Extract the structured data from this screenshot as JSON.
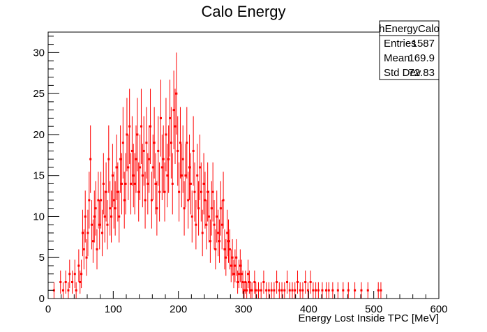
{
  "chart_data": {
    "type": "histogram",
    "title": "Calo Energy",
    "xlabel": "Energy Lost Inside TPC [MeV]",
    "ylabel": "",
    "xlim": [
      0,
      600
    ],
    "ylim": [
      0,
      32.5
    ],
    "bin_width": 2,
    "x_ticks": [
      0,
      100,
      200,
      300,
      400,
      500,
      600
    ],
    "y_ticks": [
      0,
      5,
      10,
      15,
      20,
      25,
      30
    ],
    "grid": false,
    "marker_color": "#ff0000",
    "stats_box": {
      "name": "hEnergyCalo",
      "rows": [
        {
          "label": "Entries",
          "value": "1587"
        },
        {
          "label": "Mean",
          "value": "169.9"
        },
        {
          "label": "Std Dev",
          "value": "72.83"
        }
      ]
    },
    "bins": [
      {
        "x": 9,
        "y": 1
      },
      {
        "x": 13,
        "y": 0
      },
      {
        "x": 19,
        "y": 2
      },
      {
        "x": 23,
        "y": 1
      },
      {
        "x": 27,
        "y": 2
      },
      {
        "x": 31,
        "y": 1
      },
      {
        "x": 33,
        "y": 3
      },
      {
        "x": 37,
        "y": 2
      },
      {
        "x": 41,
        "y": 3
      },
      {
        "x": 43,
        "y": 1
      },
      {
        "x": 47,
        "y": 4
      },
      {
        "x": 49,
        "y": 2
      },
      {
        "x": 51,
        "y": 3
      },
      {
        "x": 53,
        "y": 8
      },
      {
        "x": 55,
        "y": 6
      },
      {
        "x": 57,
        "y": 10
      },
      {
        "x": 59,
        "y": 5
      },
      {
        "x": 61,
        "y": 8
      },
      {
        "x": 63,
        "y": 12
      },
      {
        "x": 65,
        "y": 17
      },
      {
        "x": 67,
        "y": 9
      },
      {
        "x": 69,
        "y": 7
      },
      {
        "x": 71,
        "y": 10
      },
      {
        "x": 73,
        "y": 11
      },
      {
        "x": 75,
        "y": 6
      },
      {
        "x": 77,
        "y": 12
      },
      {
        "x": 79,
        "y": 9
      },
      {
        "x": 81,
        "y": 12
      },
      {
        "x": 83,
        "y": 8
      },
      {
        "x": 85,
        "y": 14
      },
      {
        "x": 87,
        "y": 10
      },
      {
        "x": 89,
        "y": 13
      },
      {
        "x": 91,
        "y": 9
      },
      {
        "x": 93,
        "y": 17
      },
      {
        "x": 95,
        "y": 11
      },
      {
        "x": 97,
        "y": 10
      },
      {
        "x": 99,
        "y": 15
      },
      {
        "x": 101,
        "y": 12
      },
      {
        "x": 103,
        "y": 11
      },
      {
        "x": 105,
        "y": 16
      },
      {
        "x": 107,
        "y": 13
      },
      {
        "x": 109,
        "y": 10
      },
      {
        "x": 111,
        "y": 17
      },
      {
        "x": 113,
        "y": 14
      },
      {
        "x": 115,
        "y": 19
      },
      {
        "x": 117,
        "y": 12
      },
      {
        "x": 119,
        "y": 14
      },
      {
        "x": 121,
        "y": 20
      },
      {
        "x": 123,
        "y": 16
      },
      {
        "x": 125,
        "y": 21
      },
      {
        "x": 127,
        "y": 14
      },
      {
        "x": 129,
        "y": 18
      },
      {
        "x": 131,
        "y": 15
      },
      {
        "x": 133,
        "y": 14
      },
      {
        "x": 135,
        "y": 17
      },
      {
        "x": 137,
        "y": 20
      },
      {
        "x": 139,
        "y": 13
      },
      {
        "x": 141,
        "y": 16
      },
      {
        "x": 143,
        "y": 21
      },
      {
        "x": 145,
        "y": 15
      },
      {
        "x": 147,
        "y": 18
      },
      {
        "x": 149,
        "y": 12
      },
      {
        "x": 151,
        "y": 19
      },
      {
        "x": 153,
        "y": 14
      },
      {
        "x": 155,
        "y": 17
      },
      {
        "x": 157,
        "y": 21
      },
      {
        "x": 159,
        "y": 12
      },
      {
        "x": 161,
        "y": 16
      },
      {
        "x": 163,
        "y": 19
      },
      {
        "x": 165,
        "y": 14
      },
      {
        "x": 167,
        "y": 11
      },
      {
        "x": 169,
        "y": 18
      },
      {
        "x": 171,
        "y": 13
      },
      {
        "x": 173,
        "y": 22
      },
      {
        "x": 175,
        "y": 16
      },
      {
        "x": 177,
        "y": 17
      },
      {
        "x": 179,
        "y": 13
      },
      {
        "x": 181,
        "y": 20
      },
      {
        "x": 183,
        "y": 15
      },
      {
        "x": 185,
        "y": 17
      },
      {
        "x": 187,
        "y": 22
      },
      {
        "x": 189,
        "y": 19
      },
      {
        "x": 191,
        "y": 14
      },
      {
        "x": 193,
        "y": 23
      },
      {
        "x": 195,
        "y": 21
      },
      {
        "x": 197,
        "y": 25
      },
      {
        "x": 199,
        "y": 18
      },
      {
        "x": 201,
        "y": 13
      },
      {
        "x": 203,
        "y": 19
      },
      {
        "x": 205,
        "y": 15
      },
      {
        "x": 207,
        "y": 17
      },
      {
        "x": 209,
        "y": 11
      },
      {
        "x": 211,
        "y": 15
      },
      {
        "x": 213,
        "y": 19
      },
      {
        "x": 215,
        "y": 12
      },
      {
        "x": 217,
        "y": 16
      },
      {
        "x": 219,
        "y": 14
      },
      {
        "x": 221,
        "y": 10
      },
      {
        "x": 223,
        "y": 18
      },
      {
        "x": 225,
        "y": 13
      },
      {
        "x": 227,
        "y": 9
      },
      {
        "x": 229,
        "y": 15
      },
      {
        "x": 231,
        "y": 11
      },
      {
        "x": 233,
        "y": 16
      },
      {
        "x": 235,
        "y": 13
      },
      {
        "x": 237,
        "y": 8
      },
      {
        "x": 239,
        "y": 14
      },
      {
        "x": 241,
        "y": 12
      },
      {
        "x": 243,
        "y": 9
      },
      {
        "x": 245,
        "y": 13
      },
      {
        "x": 247,
        "y": 10
      },
      {
        "x": 249,
        "y": 7
      },
      {
        "x": 251,
        "y": 11
      },
      {
        "x": 253,
        "y": 13
      },
      {
        "x": 255,
        "y": 9
      },
      {
        "x": 257,
        "y": 6
      },
      {
        "x": 259,
        "y": 10
      },
      {
        "x": 261,
        "y": 8
      },
      {
        "x": 263,
        "y": 7
      },
      {
        "x": 265,
        "y": 11
      },
      {
        "x": 267,
        "y": 9
      },
      {
        "x": 269,
        "y": 12
      },
      {
        "x": 271,
        "y": 6
      },
      {
        "x": 273,
        "y": 5
      },
      {
        "x": 275,
        "y": 8
      },
      {
        "x": 277,
        "y": 7
      },
      {
        "x": 279,
        "y": 6
      },
      {
        "x": 281,
        "y": 4
      },
      {
        "x": 283,
        "y": 5
      },
      {
        "x": 285,
        "y": 3
      },
      {
        "x": 287,
        "y": 4
      },
      {
        "x": 289,
        "y": 5
      },
      {
        "x": 291,
        "y": 2
      },
      {
        "x": 293,
        "y": 3
      },
      {
        "x": 295,
        "y": 4
      },
      {
        "x": 297,
        "y": 3
      },
      {
        "x": 299,
        "y": 2
      },
      {
        "x": 301,
        "y": 1
      },
      {
        "x": 303,
        "y": 2
      },
      {
        "x": 305,
        "y": 1
      },
      {
        "x": 307,
        "y": 3
      },
      {
        "x": 309,
        "y": 2
      },
      {
        "x": 311,
        "y": 1
      },
      {
        "x": 313,
        "y": 1
      },
      {
        "x": 317,
        "y": 2
      },
      {
        "x": 319,
        "y": 1
      },
      {
        "x": 323,
        "y": 1
      },
      {
        "x": 327,
        "y": 1
      },
      {
        "x": 331,
        "y": 2
      },
      {
        "x": 335,
        "y": 1
      },
      {
        "x": 339,
        "y": 1
      },
      {
        "x": 343,
        "y": 1
      },
      {
        "x": 347,
        "y": 1
      },
      {
        "x": 351,
        "y": 2
      },
      {
        "x": 355,
        "y": 1
      },
      {
        "x": 359,
        "y": 1
      },
      {
        "x": 363,
        "y": 1
      },
      {
        "x": 367,
        "y": 2
      },
      {
        "x": 371,
        "y": 1
      },
      {
        "x": 375,
        "y": 1
      },
      {
        "x": 379,
        "y": 1
      },
      {
        "x": 383,
        "y": 2
      },
      {
        "x": 387,
        "y": 1
      },
      {
        "x": 391,
        "y": 1
      },
      {
        "x": 395,
        "y": 2
      },
      {
        "x": 399,
        "y": 1
      },
      {
        "x": 403,
        "y": 2
      },
      {
        "x": 407,
        "y": 1
      },
      {
        "x": 411,
        "y": 1
      },
      {
        "x": 415,
        "y": 1
      },
      {
        "x": 421,
        "y": 1
      },
      {
        "x": 427,
        "y": 1
      },
      {
        "x": 431,
        "y": 1
      },
      {
        "x": 437,
        "y": 1
      },
      {
        "x": 445,
        "y": 1
      },
      {
        "x": 453,
        "y": 1
      },
      {
        "x": 461,
        "y": 1
      },
      {
        "x": 471,
        "y": 1
      },
      {
        "x": 481,
        "y": 1
      },
      {
        "x": 491,
        "y": 1
      },
      {
        "x": 507,
        "y": 1
      },
      {
        "x": 511,
        "y": 1
      }
    ]
  }
}
